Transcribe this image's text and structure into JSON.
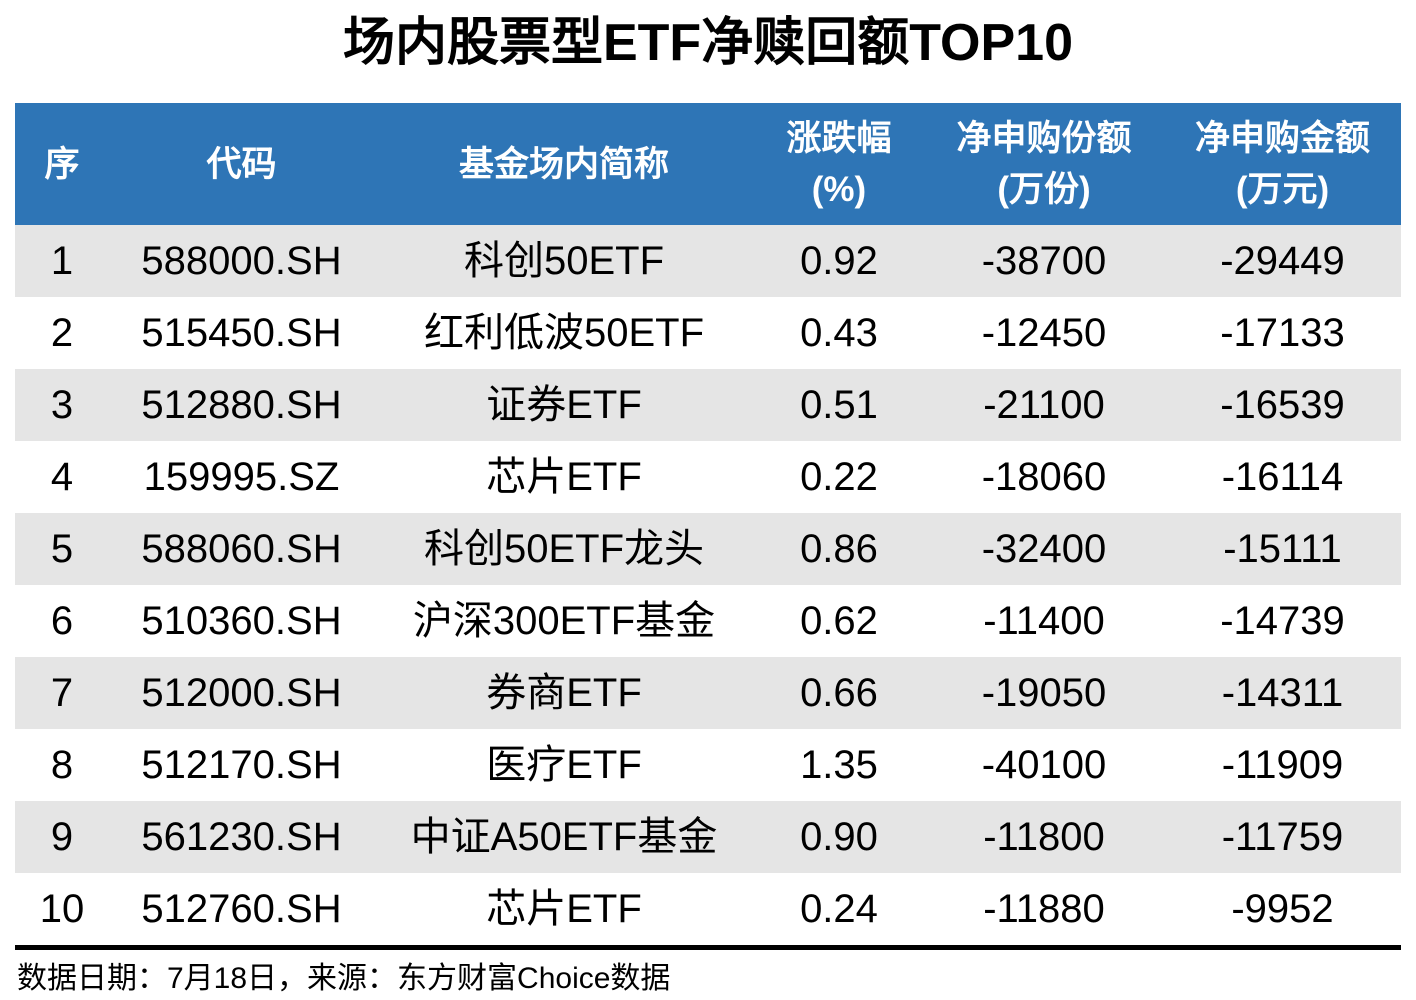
{
  "title": "场内股票型ETF净赎回额TOP10",
  "footer_note": "数据日期：7月18日，来源：东方财富Choice数据",
  "colors": {
    "header_bg": "#2E75B6",
    "header_text": "#FFFFFF",
    "stripe_bg": "#E5E5E5",
    "rule_color": "#000000",
    "body_text": "#000000"
  },
  "chart_data": {
    "type": "table",
    "title": "场内股票型ETF净赎回额TOP10",
    "source_note": "数据日期：7月18日，来源：东方财富Choice数据",
    "columns": [
      {
        "key": "rank",
        "lines": [
          "序"
        ]
      },
      {
        "key": "code",
        "lines": [
          "代码"
        ]
      },
      {
        "key": "name",
        "lines": [
          "基金场内简称"
        ]
      },
      {
        "key": "change",
        "lines": [
          "涨跌幅",
          "(%)"
        ]
      },
      {
        "key": "net_shares",
        "lines": [
          "净申购份额",
          "(万份)"
        ]
      },
      {
        "key": "net_amount",
        "lines": [
          "净申购金额",
          "(万元)"
        ]
      }
    ],
    "rows": [
      {
        "rank": "1",
        "code": "588000.SH",
        "name": "科创50ETF",
        "change": "0.92",
        "net_shares": "-38700",
        "net_amount": "-29449"
      },
      {
        "rank": "2",
        "code": "515450.SH",
        "name": "红利低波50ETF",
        "change": "0.43",
        "net_shares": "-12450",
        "net_amount": "-17133"
      },
      {
        "rank": "3",
        "code": "512880.SH",
        "name": "证券ETF",
        "change": "0.51",
        "net_shares": "-21100",
        "net_amount": "-16539"
      },
      {
        "rank": "4",
        "code": "159995.SZ",
        "name": "芯片ETF",
        "change": "0.22",
        "net_shares": "-18060",
        "net_amount": "-16114"
      },
      {
        "rank": "5",
        "code": "588060.SH",
        "name": "科创50ETF龙头",
        "change": "0.86",
        "net_shares": "-32400",
        "net_amount": "-15111"
      },
      {
        "rank": "6",
        "code": "510360.SH",
        "name": "沪深300ETF基金",
        "change": "0.62",
        "net_shares": "-11400",
        "net_amount": "-14739"
      },
      {
        "rank": "7",
        "code": "512000.SH",
        "name": "券商ETF",
        "change": "0.66",
        "net_shares": "-19050",
        "net_amount": "-14311"
      },
      {
        "rank": "8",
        "code": "512170.SH",
        "name": "医疗ETF",
        "change": "1.35",
        "net_shares": "-40100",
        "net_amount": "-11909"
      },
      {
        "rank": "9",
        "code": "561230.SH",
        "name": "中证A50ETF基金",
        "change": "0.90",
        "net_shares": "-11800",
        "net_amount": "-11759"
      },
      {
        "rank": "10",
        "code": "512760.SH",
        "name": "芯片ETF",
        "change": "0.24",
        "net_shares": "-11880",
        "net_amount": "-9952"
      }
    ]
  }
}
